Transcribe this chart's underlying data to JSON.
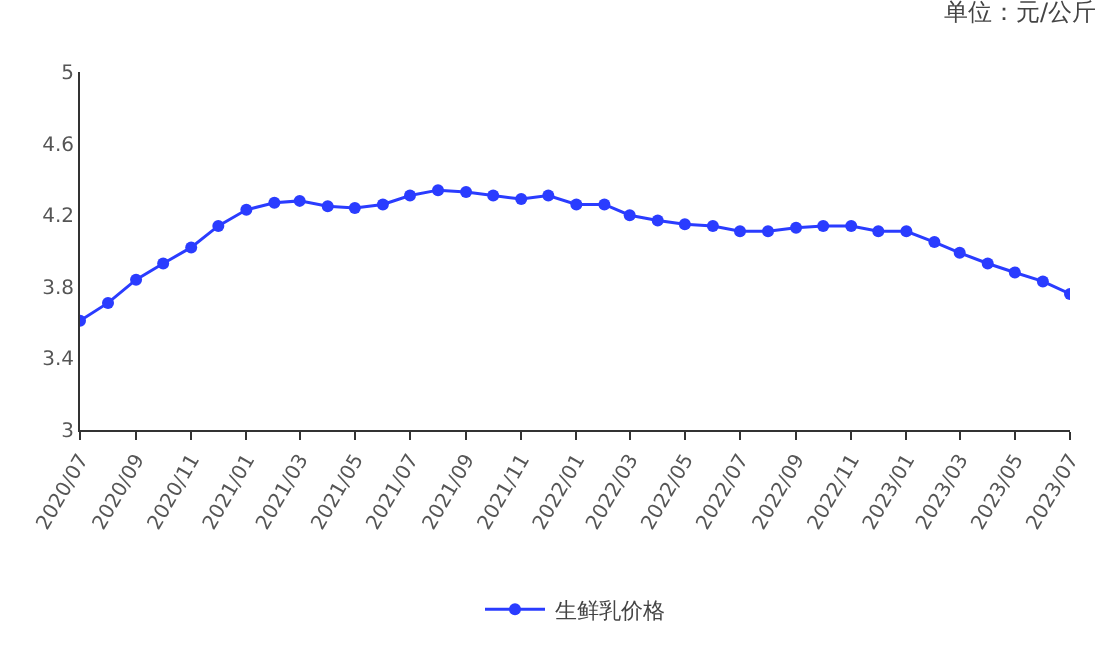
{
  "chart_data": {
    "type": "line",
    "annotations": [
      "单位：元/公斤"
    ],
    "x": [
      "2020-07",
      "2020-08",
      "2020-09",
      "2020-10",
      "2020-11",
      "2020-12",
      "2021-01",
      "2021-02",
      "2021-03",
      "2021-04",
      "2021-05",
      "2021-06",
      "2021-07",
      "2021-08",
      "2021-09",
      "2021-10",
      "2021-11",
      "2021-12",
      "2022-01",
      "2022-02",
      "2022-03",
      "2022-04",
      "2022-05",
      "2022-06",
      "2022-07",
      "2022-08",
      "2022-09",
      "2022-10",
      "2022-11",
      "2022-12",
      "2023-01",
      "2023-02",
      "2023-03",
      "2023-04",
      "2023-05",
      "2023-06",
      "2023-07"
    ],
    "series": [
      {
        "name": "生鲜乳价格",
        "color": "#2a3cff",
        "values": [
          3.61,
          3.71,
          3.84,
          3.93,
          4.02,
          4.14,
          4.23,
          4.27,
          4.28,
          4.25,
          4.24,
          4.26,
          4.31,
          4.34,
          4.33,
          4.31,
          4.29,
          4.31,
          4.26,
          4.26,
          4.2,
          4.17,
          4.15,
          4.14,
          4.11,
          4.11,
          4.13,
          4.14,
          4.14,
          4.11,
          4.11,
          4.05,
          3.99,
          3.93,
          3.88,
          3.83,
          3.76
        ]
      }
    ],
    "xlim": [
      "2020-07",
      "2023-07"
    ],
    "xticks": [
      {
        "value": "2020-07",
        "label": "2020/07"
      },
      {
        "value": "2020-09",
        "label": "2020/09"
      },
      {
        "value": "2020-11",
        "label": "2020/11"
      },
      {
        "value": "2021-01",
        "label": "2021/01"
      },
      {
        "value": "2021-03",
        "label": "2021/03"
      },
      {
        "value": "2021-05",
        "label": "2021/05"
      },
      {
        "value": "2021-07",
        "label": "2021/07"
      },
      {
        "value": "2021-09",
        "label": "2021/09"
      },
      {
        "value": "2021-11",
        "label": "2021/11"
      },
      {
        "value": "2022-01",
        "label": "2022/01"
      },
      {
        "value": "2022-03",
        "label": "2022/03"
      },
      {
        "value": "2022-05",
        "label": "2022/05"
      },
      {
        "value": "2022-07",
        "label": "2022/07"
      },
      {
        "value": "2022-09",
        "label": "2022/09"
      },
      {
        "value": "2022-11",
        "label": "2022/11"
      },
      {
        "value": "2023-01",
        "label": "2023/01"
      },
      {
        "value": "2023-03",
        "label": "2023/03"
      },
      {
        "value": "2023-05",
        "label": "2023/05"
      },
      {
        "value": "2023-07",
        "label": "2023/07"
      }
    ],
    "ylim": [
      3,
      5
    ],
    "yticks": [
      3,
      3.4,
      3.8,
      4.2,
      4.6,
      5
    ],
    "grid": false,
    "legend": "bottom",
    "marker": "circle",
    "line_style": "solid"
  }
}
